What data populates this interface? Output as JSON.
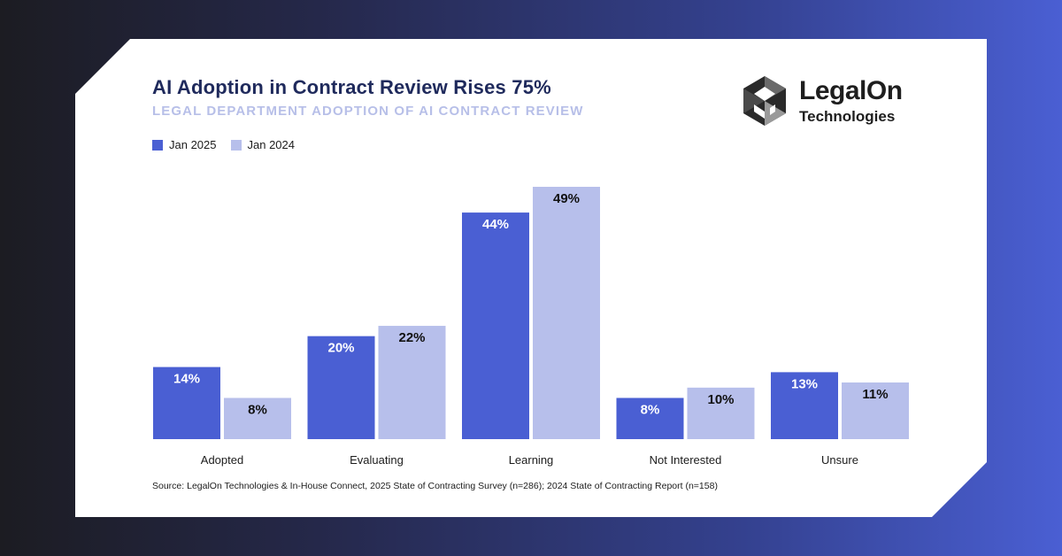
{
  "brand": {
    "name": "LegalOn",
    "sub": "Technologies",
    "logo_icon": "legalon-hexagon-icon"
  },
  "colors": {
    "series_2025": "#4a5fd3",
    "series_2024": "#b7bfeb",
    "title": "#1f2a5c"
  },
  "chart_data": {
    "type": "bar",
    "title": "AI Adoption in Contract Review Rises 75%",
    "subtitle": "LEGAL DEPARTMENT ADOPTION OF AI CONTRACT REVIEW",
    "categories": [
      "Adopted",
      "Evaluating",
      "Learning",
      "Not Interested",
      "Unsure"
    ],
    "series": [
      {
        "name": "Jan 2025",
        "values": [
          14,
          20,
          44,
          8,
          13
        ],
        "labels": [
          "14%",
          "20%",
          "44%",
          "8%",
          "13%"
        ]
      },
      {
        "name": "Jan 2024",
        "values": [
          8,
          22,
          49,
          10,
          11
        ],
        "labels": [
          "8%",
          "22%",
          "49%",
          "10%",
          "11%"
        ]
      }
    ],
    "xlabel": "",
    "ylabel": "",
    "ylim": [
      0,
      49
    ],
    "legend": "top-left",
    "grid": false
  },
  "source": "Source: LegalOn Technologies & In-House Connect, 2025 State of Contracting Survey (n=286); 2024 State of Contracting Report (n=158)"
}
